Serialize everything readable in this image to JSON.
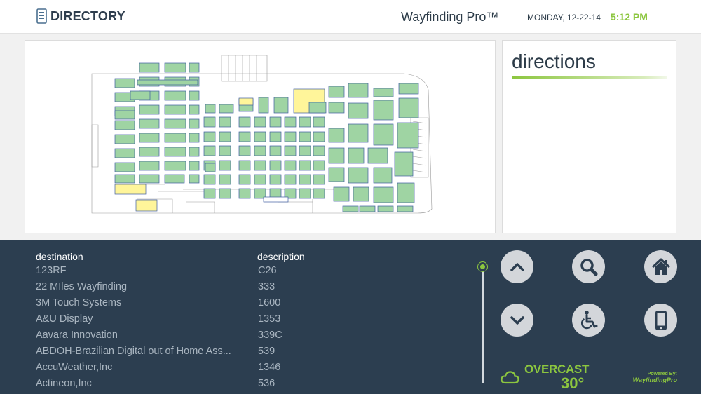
{
  "header": {
    "brand_label": "DIRECTORY",
    "app_title": "Wayfinding Pro™",
    "date": "MONDAY, 12-22-14",
    "time": "5:12 PM"
  },
  "directions": {
    "title": "directions"
  },
  "directory": {
    "col_destination": "destination",
    "col_description": "description",
    "rows": [
      {
        "destination": "123RF",
        "description": "C26"
      },
      {
        "destination": "22 MIles Wayfinding",
        "description": "333"
      },
      {
        "destination": "3M Touch Systems",
        "description": "1600"
      },
      {
        "destination": "A&U Display",
        "description": "1353"
      },
      {
        "destination": "Aavara Innovation",
        "description": "339C"
      },
      {
        "destination": "ABDOH-Brazilian Digital out of Home Ass...",
        "description": "539"
      },
      {
        "destination": "AccuWeather,Inc",
        "description": "1346"
      },
      {
        "destination": "Actineon,Inc",
        "description": "536"
      }
    ]
  },
  "controls": {
    "icons": [
      "chevron-up-icon",
      "search-icon",
      "home-icon",
      "chevron-down-icon",
      "wheelchair-icon",
      "mobile-phone-icon"
    ]
  },
  "weather": {
    "condition": "OVERCAST",
    "temperature": "30°",
    "icon": "cloud-icon"
  },
  "footer": {
    "powered_by": "Powered By:",
    "powered_name": "WayfindingPro"
  },
  "colors": {
    "accent": "#8cc63f",
    "panel_dark": "#2c3e50",
    "booth_green": "#9fd4a3",
    "booth_yellow": "#fff59a"
  }
}
